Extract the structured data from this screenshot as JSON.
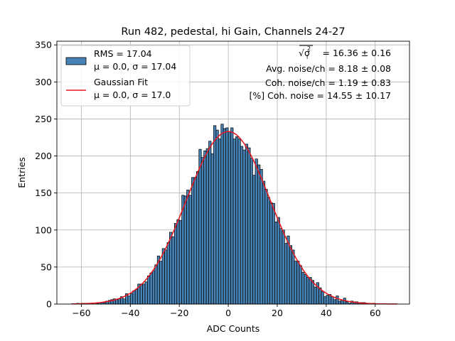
{
  "chart_data": {
    "type": "bar",
    "title": "Run 482, pedestal, hi Gain, Channels 24-27",
    "xlabel": "ADC Counts",
    "ylabel": "Entries",
    "xlim": [
      -70,
      74
    ],
    "ylim": [
      0,
      355
    ],
    "x_ticks": [
      "−60",
      "−40",
      "−20",
      "0",
      "20",
      "40",
      "60"
    ],
    "y_ticks": [
      "0",
      "50",
      "100",
      "150",
      "200",
      "250",
      "300",
      "350"
    ],
    "grid": true,
    "legend_placement": "top-left",
    "bin_width": 1,
    "bin_start": -64,
    "bin_end": 69,
    "histogram_color": "#4682b4",
    "fit_color": "#e8141b",
    "series": [
      {
        "name": "RMS = 17.04",
        "subname": "μ = 0.0, σ = 17.04",
        "kind": "histogram",
        "mu": 0.0,
        "sigma": 17.04
      },
      {
        "name": "Gaussian Fit",
        "subname": "μ = 0.0, σ = 17.0",
        "kind": "fit",
        "mu": 0.0,
        "sigma": 17.0,
        "amplitude": 233
      }
    ],
    "annotations": [
      {
        "sym": "√σ",
        "rest": " = 16.36 ± 0.16"
      },
      {
        "text": "Avg. noise/ch = 8.18 ± 0.08"
      },
      {
        "text": "Coh. noise/ch = 1.19 ± 0.83"
      },
      {
        "text": "[%] Coh. noise = 14.55 ± 10.17"
      }
    ]
  }
}
